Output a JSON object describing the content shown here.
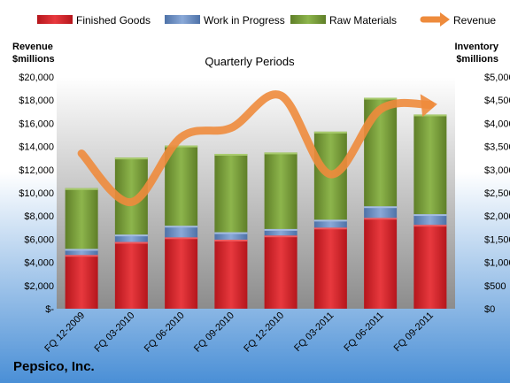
{
  "company": "Pepsico, Inc.",
  "colors": {
    "finished_goods": "#d7232a",
    "work_in_progress": "#6f93c9",
    "raw_materials": "#7fa33f",
    "revenue": "#ee8b3c",
    "plot_top": "#ffffff",
    "plot_bottom": "#8c8c8c",
    "background_top": "#ffffff",
    "background_bottom": "#4a8fd6"
  },
  "chart_data": {
    "type": "bar",
    "stacked": true,
    "subtitle": "Quarterly Periods",
    "ylabel_left": [
      "Revenue",
      "$millions"
    ],
    "ylabel_right": [
      "Inventory",
      "$millions"
    ],
    "categories": [
      "FQ 12-2009",
      "FQ 03-2010",
      "FQ 06-2010",
      "FQ 09-2010",
      "FQ 12-2010",
      "FQ 03-2011",
      "FQ 06-2011",
      "FQ 09-2011"
    ],
    "left_axis": {
      "min": 0,
      "max": 20000,
      "step": 2000,
      "tick_labels": [
        "$-",
        "$2,000",
        "$4,000",
        "$6,000",
        "$8,000",
        "$10,000",
        "$12,000",
        "$14,000",
        "$16,000",
        "$18,000",
        "$20,000"
      ]
    },
    "right_axis": {
      "min": 0,
      "max": 5000,
      "step": 500,
      "tick_labels": [
        "$0",
        "$500",
        "$1,000",
        "$1,500",
        "$2,000",
        "$2,500",
        "$3,000",
        "$3,500",
        "$4,000",
        "$4,500",
        "$5,000"
      ]
    },
    "bar_series": [
      {
        "name": "Finished Goods",
        "values": [
          1160,
          1440,
          1540,
          1490,
          1580,
          1750,
          1960,
          1810
        ]
      },
      {
        "name": "Work in Progress",
        "values": [
          130,
          160,
          250,
          160,
          140,
          170,
          250,
          230
        ]
      },
      {
        "name": "Raw Materials",
        "values": [
          1310,
          1660,
          1730,
          1690,
          1650,
          1900,
          2340,
          2150
        ]
      }
    ],
    "line_series": {
      "name": "Revenue",
      "axis": "right",
      "values": [
        3350,
        2300,
        3700,
        3900,
        4600,
        2900,
        4300,
        4400
      ]
    },
    "legend_position": "top",
    "grid": false
  }
}
